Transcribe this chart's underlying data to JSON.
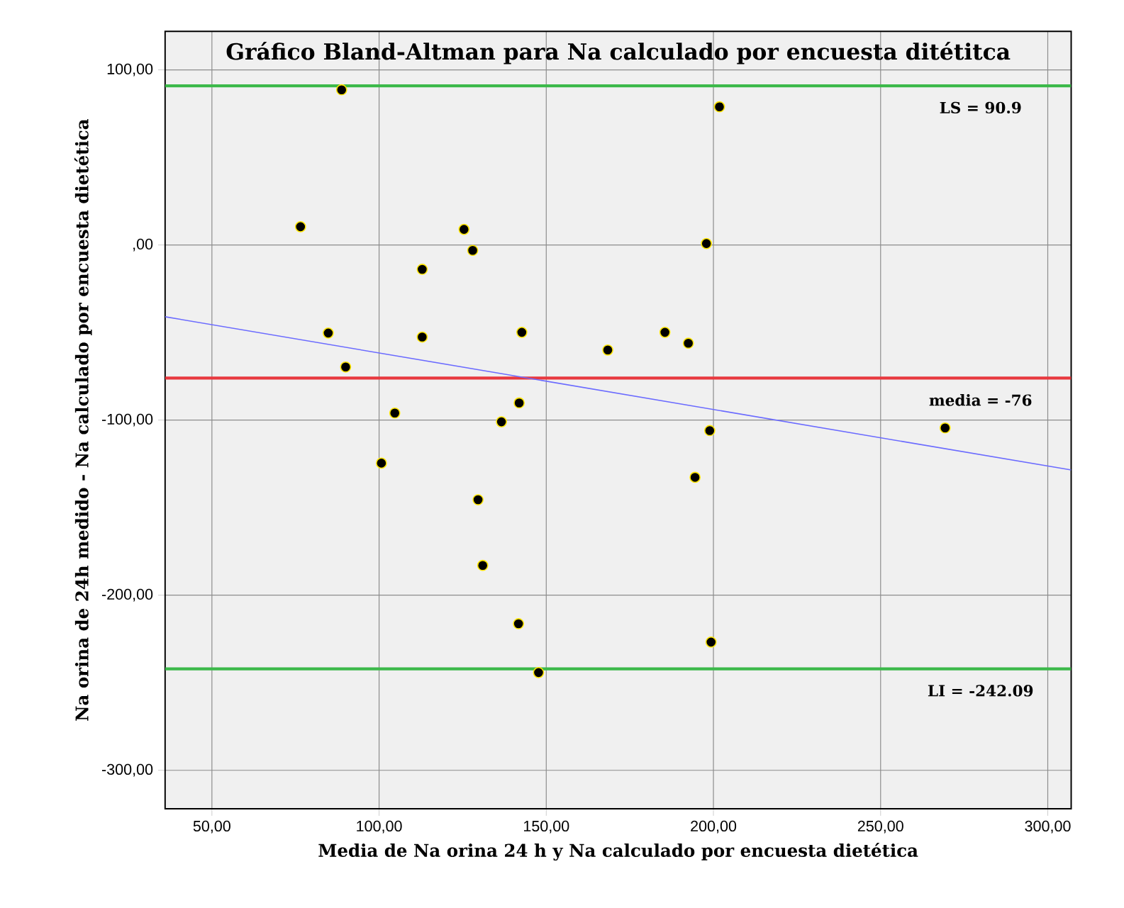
{
  "chart_data": {
    "type": "scatter",
    "title": "Gráfico Bland-Altman para Na calculado por encuesta ditétitca",
    "xlabel": "Media de Na orina 24 h y Na calculado por encuesta dietética",
    "ylabel": "Na orina de 24h medido - Na calculado por encuesta dietética",
    "xlim": [
      36,
      307
    ],
    "ylim": [
      -322,
      122
    ],
    "xticks": [
      {
        "value": 50,
        "label": "50,00"
      },
      {
        "value": 100,
        "label": "100,00"
      },
      {
        "value": 150,
        "label": "150,00"
      },
      {
        "value": 200,
        "label": "200,00"
      },
      {
        "value": 250,
        "label": "250,00"
      },
      {
        "value": 300,
        "label": "300,00"
      }
    ],
    "yticks": [
      {
        "value": -300,
        "label": "-300,00"
      },
      {
        "value": -200,
        "label": "-200,00"
      },
      {
        "value": -100,
        "label": "-100,00"
      },
      {
        "value": 0,
        "label": ",00"
      },
      {
        "value": 100,
        "label": "100,00"
      }
    ],
    "grid": true,
    "series": [
      {
        "marker": "circle",
        "color": "#000000",
        "x": [
          88.8,
          201.8,
          76.5,
          125.4,
          197.9,
          128.0,
          112.9,
          84.8,
          112.9,
          142.7,
          185.5,
          192.5,
          168.4,
          90.0,
          104.7,
          141.9,
          136.6,
          198.9,
          269.3,
          100.7,
          194.5,
          129.6,
          131.0,
          141.7,
          199.3,
          147.7
        ],
        "values": [
          88.6,
          78.9,
          10.4,
          8.9,
          0.8,
          -3.1,
          -13.9,
          -50.3,
          -52.6,
          -49.9,
          -49.9,
          -56.1,
          -60.0,
          -69.7,
          -96.0,
          -90.2,
          -101.0,
          -106.0,
          -104.5,
          -124.6,
          -132.7,
          -145.5,
          -183.0,
          -216.3,
          -226.8,
          -244.2
        ]
      },
      {
        "type": "line",
        "marker": "none",
        "color": "#6b6bff",
        "x": [
          36,
          307
        ],
        "values": [
          -41.0,
          -128.5
        ]
      }
    ],
    "ref_lines": [
      {
        "axis": "y",
        "value": 90.9,
        "label": "LS = 90.9",
        "color": "#3cb94a"
      },
      {
        "axis": "y",
        "value": -76,
        "label": "media = -76",
        "color": "#e8393f"
      },
      {
        "axis": "y",
        "value": -242.09,
        "label": "LI = -242.09",
        "color": "#3cb94a"
      }
    ]
  }
}
